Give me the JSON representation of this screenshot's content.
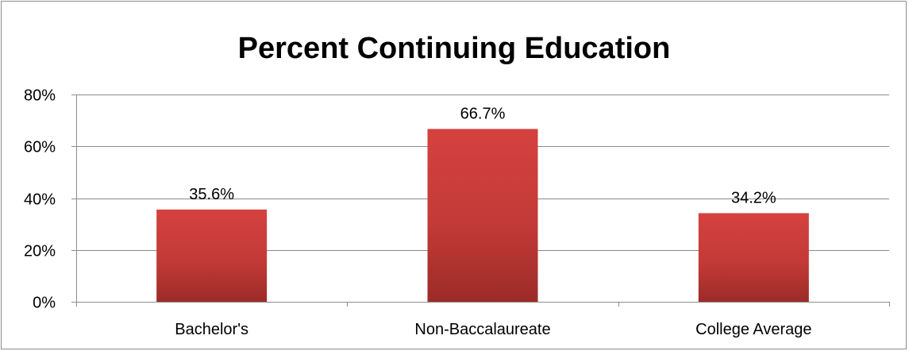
{
  "chart_data": {
    "type": "bar",
    "title": "Percent Continuing Education",
    "categories": [
      "Bachelor's",
      "Non-Baccalaureate",
      "College Average"
    ],
    "values": [
      35.6,
      66.7,
      34.2
    ],
    "data_labels": [
      "35.6%",
      "66.7%",
      "34.2%"
    ],
    "ylim": [
      0,
      80
    ],
    "yticks": [
      0,
      20,
      40,
      60,
      80
    ],
    "ytick_labels": [
      "0%",
      "20%",
      "40%",
      "60%",
      "80%"
    ],
    "xlabel": "",
    "ylabel": "",
    "grid": true,
    "legend": "none",
    "colors": {
      "bar_top": "#d4423f",
      "bar_bottom": "#9c2b28",
      "grid": "#8c8c8c",
      "axis": "#8c8c8c"
    }
  }
}
